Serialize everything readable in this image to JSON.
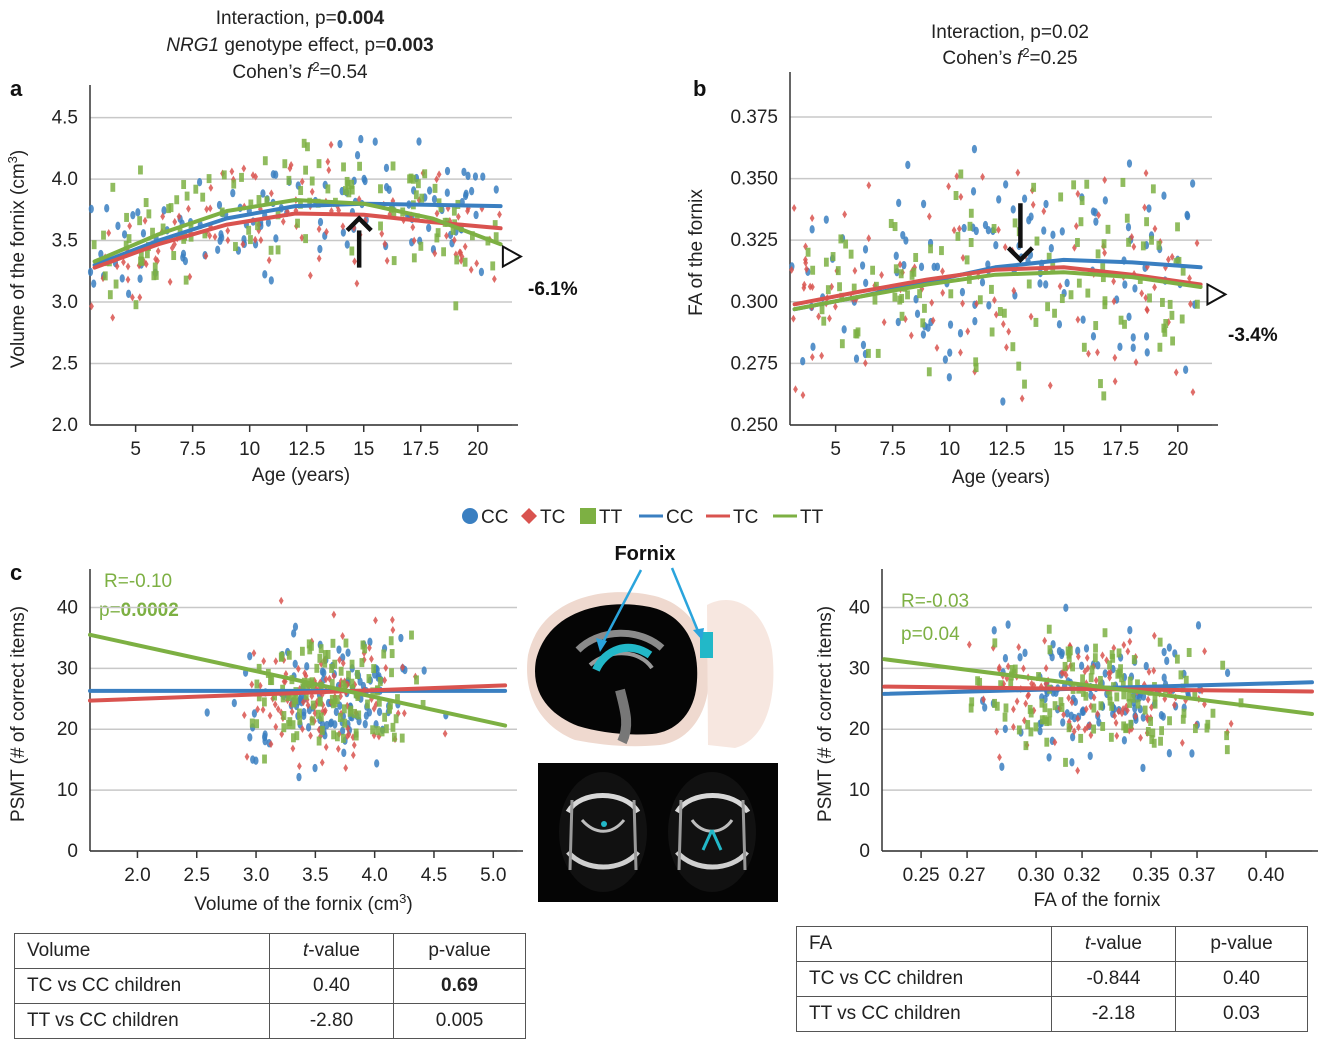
{
  "colors": {
    "CC": "#3a7fc1",
    "TC": "#d9534f",
    "TT": "#7db043",
    "grid": "#c8c8c8",
    "axis": "#333333"
  },
  "legend": [
    {
      "kind": "dot",
      "group": "CC",
      "label": "CC"
    },
    {
      "kind": "diamond",
      "group": "TC",
      "label": "TC"
    },
    {
      "kind": "square",
      "group": "TT",
      "label": "TT"
    },
    {
      "kind": "line",
      "group": "CC",
      "label": "CC"
    },
    {
      "kind": "line",
      "group": "TC",
      "label": "TC"
    },
    {
      "kind": "line",
      "group": "TT",
      "label": "TT"
    }
  ],
  "panels": {
    "a": {
      "letter": "a",
      "title1": "Interaction, p=",
      "title1_bold": "0.004",
      "title2_italic": "NRG1",
      "title2": " genotype effect, p=",
      "title2_bold": "0.003",
      "title3": "Cohen’s ",
      "title3_f": "f",
      "title3_sup": "2",
      "title3_val": "=0.54",
      "annotation": "-6.1%"
    },
    "b": {
      "letter": "b",
      "title1": "Interaction, p=0.02",
      "title3": "Cohen’s ",
      "title3_f": "f",
      "title3_sup": "2",
      "title3_val": "=0.25",
      "annotation": "-3.4%"
    },
    "c": {
      "letter": "c",
      "r_text": "R=-0.10",
      "p_prefix": "p=",
      "p_bold": "0.0002",
      "r_text_right": "R=-0.03",
      "p_text_right": "p=0.04"
    }
  },
  "brain": {
    "fornix_label": "Fornix"
  },
  "tables": {
    "volume": {
      "header": [
        "Volume",
        "t-value",
        "p-value"
      ],
      "rows": [
        [
          "TC vs CC children",
          "0.40",
          "0.69"
        ],
        [
          "TT vs CC children",
          "-2.80",
          "0.005"
        ]
      ],
      "bold_cells": [
        [
          1,
          2
        ]
      ]
    },
    "fa": {
      "header": [
        "FA",
        "t-value",
        "p-value"
      ],
      "rows": [
        [
          "TC vs CC children",
          "-0.844",
          "0.40"
        ],
        [
          "TT vs CC children",
          "-2.18",
          "0.03"
        ]
      ],
      "bold_cells": []
    }
  },
  "chart_data": [
    {
      "id": "a",
      "type": "scatter",
      "xlabel": "Age (years)",
      "ylabel": "Volume of the fornix (cm³)",
      "xlim": [
        3,
        21.5
      ],
      "ylim": [
        2.0,
        4.7
      ],
      "xticks": [
        5,
        7.5,
        10,
        12.5,
        15,
        17.5,
        20
      ],
      "xtick_labels": [
        "5",
        "7.5",
        "10",
        "12.5",
        "15",
        "17.5",
        "20"
      ],
      "yticks": [
        2.0,
        2.5,
        3.0,
        3.5,
        4.0,
        4.5
      ],
      "ytick_labels": [
        "2.0",
        "2.5",
        "3.0",
        "3.5",
        "4.0",
        "4.5"
      ],
      "grid": true,
      "series": [
        {
          "name": "CC",
          "x": [
            3.2,
            6,
            9,
            12,
            15,
            18,
            21
          ],
          "y": [
            3.3,
            3.5,
            3.68,
            3.78,
            3.8,
            3.79,
            3.78
          ]
        },
        {
          "name": "TC",
          "x": [
            3.2,
            6,
            9,
            12,
            15,
            18,
            21
          ],
          "y": [
            3.28,
            3.47,
            3.63,
            3.72,
            3.71,
            3.65,
            3.6
          ]
        },
        {
          "name": "TT",
          "x": [
            3.2,
            6,
            9,
            12,
            15,
            18,
            21
          ],
          "y": [
            3.33,
            3.55,
            3.74,
            3.83,
            3.8,
            3.68,
            3.47
          ]
        }
      ],
      "arrow_at": {
        "x": 14.8,
        "y_from": 3.28,
        "y_to": 3.68,
        "direction": "up"
      },
      "end_marker": {
        "x": 21.1,
        "y": 3.37
      },
      "scatter_summary": {
        "n_per_group": 120,
        "x_range": [
          3,
          21
        ],
        "y_center": 3.6,
        "y_spread": 0.33
      }
    },
    {
      "id": "b",
      "type": "scatter",
      "xlabel": "Age (years)",
      "ylabel": "FA  of the fornix",
      "xlim": [
        3,
        21.5
      ],
      "ylim": [
        0.25,
        0.39
      ],
      "xticks": [
        5,
        7.5,
        10,
        12.5,
        15,
        17.5,
        20
      ],
      "xtick_labels": [
        "5",
        "7.5",
        "10",
        "12.5",
        "15",
        "17.5",
        "20"
      ],
      "yticks": [
        0.25,
        0.275,
        0.3,
        0.325,
        0.35,
        0.375
      ],
      "ytick_labels": [
        "0.250",
        "0.275",
        "0.300",
        "0.325",
        "0.350",
        "0.375"
      ],
      "grid": true,
      "series": [
        {
          "name": "CC",
          "x": [
            3.2,
            6,
            9,
            12,
            15,
            18,
            21
          ],
          "y": [
            0.297,
            0.302,
            0.308,
            0.314,
            0.317,
            0.316,
            0.314
          ]
        },
        {
          "name": "TC",
          "x": [
            3.2,
            6,
            9,
            12,
            15,
            18,
            21
          ],
          "y": [
            0.299,
            0.304,
            0.309,
            0.313,
            0.314,
            0.311,
            0.307
          ]
        },
        {
          "name": "TT",
          "x": [
            3.2,
            6,
            9,
            12,
            15,
            18,
            21
          ],
          "y": [
            0.297,
            0.302,
            0.307,
            0.311,
            0.312,
            0.31,
            0.306
          ]
        }
      ],
      "arrow_at": {
        "x": 13.1,
        "y_from": 0.34,
        "y_to": 0.317,
        "direction": "down"
      },
      "end_marker": {
        "x": 21.3,
        "y": 0.303
      },
      "scatter_summary": {
        "n_per_group": 120,
        "x_range": [
          3,
          21
        ],
        "y_center": 0.31,
        "y_spread": 0.028
      }
    },
    {
      "id": "c-left",
      "type": "scatter",
      "xlabel": "Volume of the fornix (cm³)",
      "ylabel": "PSMT (# of correct items)",
      "xlim": [
        1.6,
        5.2
      ],
      "ylim": [
        0,
        45
      ],
      "xticks": [
        2.0,
        2.5,
        3.0,
        3.5,
        4.0,
        4.5,
        5.0
      ],
      "xtick_labels": [
        "2.0",
        "2.5",
        "3.0",
        "3.5",
        "4.0",
        "4.5",
        "5.0"
      ],
      "yticks": [
        0,
        10,
        20,
        30,
        40
      ],
      "ytick_labels": [
        "0",
        "10",
        "20",
        "30",
        "40"
      ],
      "grid": true,
      "series": [
        {
          "name": "CC",
          "x": [
            1.6,
            5.1
          ],
          "y": [
            26.3,
            26.3
          ]
        },
        {
          "name": "TC",
          "x": [
            1.6,
            5.1
          ],
          "y": [
            24.7,
            27.2
          ]
        },
        {
          "name": "TT",
          "x": [
            1.6,
            5.1
          ],
          "y": [
            35.5,
            20.6
          ]
        }
      ],
      "scatter_summary": {
        "n_per_group": 120,
        "x_center": 3.6,
        "x_spread": 0.5,
        "y_center": 26,
        "y_spread": 7
      }
    },
    {
      "id": "c-right",
      "type": "scatter",
      "xlabel": "FA of the fornix",
      "ylabel": "PSMT (# of correct items)",
      "xlim": [
        0.233,
        0.42
      ],
      "ylim": [
        0,
        45
      ],
      "xticks": [
        0.25,
        0.27,
        0.3,
        0.32,
        0.35,
        0.37,
        0.4
      ],
      "xtick_labels": [
        "0.25",
        "0.27",
        "0.30",
        "0.32",
        "0.35",
        "0.37",
        "0.40"
      ],
      "yticks": [
        0,
        10,
        20,
        30,
        40
      ],
      "ytick_labels": [
        "0",
        "10",
        "20",
        "30",
        "40"
      ],
      "grid": true,
      "series": [
        {
          "name": "CC",
          "x": [
            0.234,
            0.42
          ],
          "y": [
            25.8,
            27.7
          ]
        },
        {
          "name": "TC",
          "x": [
            0.234,
            0.42
          ],
          "y": [
            27.0,
            26.2
          ]
        },
        {
          "name": "TT",
          "x": [
            0.234,
            0.42
          ],
          "y": [
            31.5,
            22.5
          ]
        }
      ],
      "scatter_summary": {
        "n_per_group": 120,
        "x_center": 0.325,
        "x_spread": 0.035,
        "y_center": 26,
        "y_spread": 7
      }
    }
  ]
}
